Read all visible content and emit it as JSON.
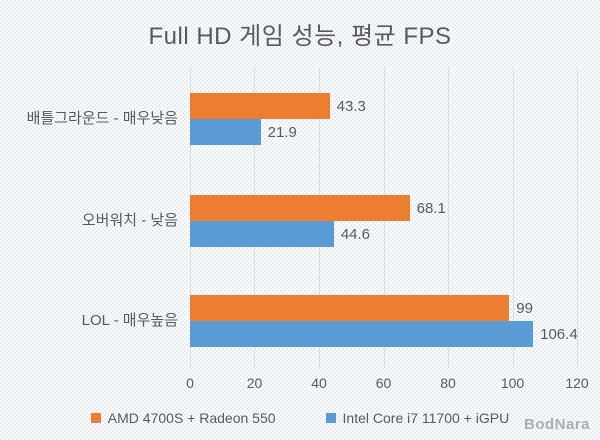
{
  "title": "Full HD 게임 성능, 평균 FPS",
  "watermark": "BodNara",
  "colors": {
    "series_amd": "#ED7D31",
    "series_intel": "#5B9BD5",
    "text": "#595959",
    "gridline": "#d6dfe8",
    "background_checker": "#e4ebf2"
  },
  "chart_data": {
    "type": "bar",
    "orientation": "horizontal",
    "title": "Full HD 게임 성능, 평균 FPS",
    "categories": [
      "배틀그라운드 - 매우낮음",
      "오버워치 - 낮음",
      "LOL - 매우높음"
    ],
    "series": [
      {
        "name": "AMD 4700S + Radeon 550",
        "color": "#ED7D31",
        "values": [
          43.3,
          68.1,
          99
        ]
      },
      {
        "name": "Intel Core i7 11700 + iGPU",
        "color": "#5B9BD5",
        "values": [
          21.9,
          44.6,
          106.4
        ]
      }
    ],
    "x_ticks": [
      "0",
      "20",
      "40",
      "60",
      "80",
      "100",
      "120"
    ],
    "xlim": [
      0,
      120
    ],
    "grid": "vertical",
    "legend_position": "bottom",
    "value_label_decimals": "as-shown"
  }
}
